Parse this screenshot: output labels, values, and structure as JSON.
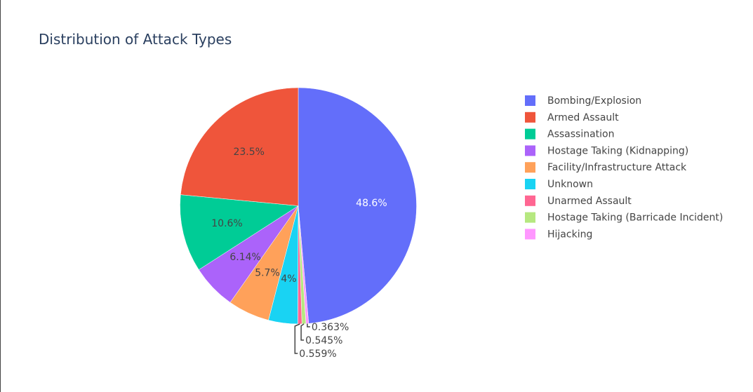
{
  "chart_data": {
    "type": "pie",
    "title": "Distribution of Attack Types",
    "direction": "clockwise",
    "start_angle_deg": 0,
    "legend_position": "right",
    "slices": [
      {
        "label": "Bombing/Explosion",
        "value": 48.6,
        "pct_label": "48.6%",
        "color": "#636efa",
        "label_color": "#ffffff",
        "label_mode": "inside"
      },
      {
        "label": "Hijacking",
        "value": 0.363,
        "pct_label": "0.363%",
        "color": "#ff97ff",
        "label_color": "#444444",
        "label_mode": "outside"
      },
      {
        "label": "Hostage Taking (Barricade Incident)",
        "value": 0.545,
        "pct_label": "0.545%",
        "color": "#b6e880",
        "label_color": "#444444",
        "label_mode": "outside"
      },
      {
        "label": "Unarmed Assault",
        "value": 0.559,
        "pct_label": "0.559%",
        "color": "#ff6692",
        "label_color": "#444444",
        "label_mode": "outside"
      },
      {
        "label": "Unknown",
        "value": 4,
        "pct_label": "4%",
        "color": "#19d3f3",
        "label_color": "#444444",
        "label_mode": "inside"
      },
      {
        "label": "Facility/Infrastructure Attack",
        "value": 5.7,
        "pct_label": "5.7%",
        "color": "#ffa15a",
        "label_color": "#444444",
        "label_mode": "inside"
      },
      {
        "label": "Hostage Taking (Kidnapping)",
        "value": 6.14,
        "pct_label": "6.14%",
        "color": "#ab63fa",
        "label_color": "#444444",
        "label_mode": "inside"
      },
      {
        "label": "Assassination",
        "value": 10.6,
        "pct_label": "10.6%",
        "color": "#00cc96",
        "label_color": "#444444",
        "label_mode": "inside"
      },
      {
        "label": "Armed Assault",
        "value": 23.5,
        "pct_label": "23.5%",
        "color": "#ef553b",
        "label_color": "#444444",
        "label_mode": "inside"
      }
    ],
    "legend": [
      {
        "label": "Bombing/Explosion",
        "color": "#636efa"
      },
      {
        "label": "Armed Assault",
        "color": "#ef553b"
      },
      {
        "label": "Assassination",
        "color": "#00cc96"
      },
      {
        "label": "Hostage Taking (Kidnapping)",
        "color": "#ab63fa"
      },
      {
        "label": "Facility/Infrastructure Attack",
        "color": "#ffa15a"
      },
      {
        "label": "Unknown",
        "color": "#19d3f3"
      },
      {
        "label": "Unarmed Assault",
        "color": "#ff6692"
      },
      {
        "label": "Hostage Taking (Barricade Incident)",
        "color": "#b6e880"
      },
      {
        "label": "Hijacking",
        "color": "#ff97ff"
      }
    ]
  }
}
